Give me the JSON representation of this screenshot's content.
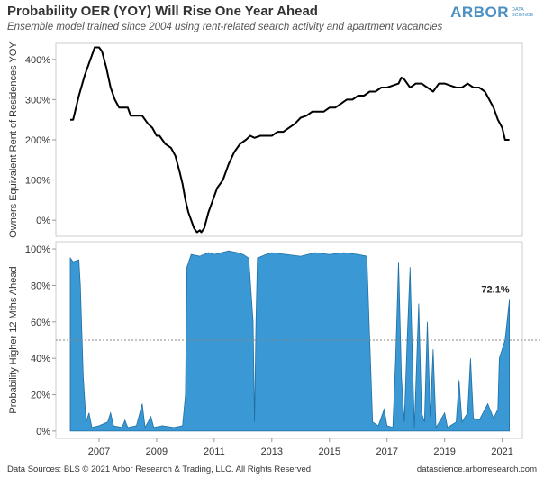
{
  "header": {
    "title": "Probability OER (YOY) Will Rise One Year Ahead",
    "subtitle": "Ensemble model trained since 2004 using rent-related search activity and apartment vacancies"
  },
  "logo": {
    "main": "ARBOR",
    "sub": "DATA SCIENCE"
  },
  "footer": {
    "left": "Data Sources: BLS © 2021 Arbor Research & Trading, LLC. All Rights Reserved",
    "right": "datascience.arborresearch.com"
  },
  "colors": {
    "line": "#000000",
    "area_fill": "#3a98d4",
    "area_stroke": "#1f6fa3",
    "reference_line": "#888888",
    "logo": "#4a90c2"
  },
  "chart_data": [
    {
      "type": "line",
      "ylabel": "Owners Equivalent Rent of Residences YOY",
      "ylim": [
        -0.4,
        4.4
      ],
      "yticks": [
        0,
        1,
        2,
        3,
        4
      ],
      "ytick_labels": [
        "0%",
        "100%",
        "200%",
        "300%",
        "400%"
      ],
      "xlim": [
        2005.5,
        2021.7
      ],
      "grid": false,
      "series": [
        {
          "values": [
            [
              2006.0,
              2.5
            ],
            [
              2006.1,
              2.5
            ],
            [
              2006.3,
              3.1
            ],
            [
              2006.5,
              3.6
            ],
            [
              2006.7,
              4.0
            ],
            [
              2006.85,
              4.3
            ],
            [
              2007.0,
              4.3
            ],
            [
              2007.1,
              4.2
            ],
            [
              2007.25,
              3.8
            ],
            [
              2007.4,
              3.3
            ],
            [
              2007.55,
              3.0
            ],
            [
              2007.7,
              2.8
            ],
            [
              2008.0,
              2.8
            ],
            [
              2008.1,
              2.6
            ],
            [
              2008.5,
              2.6
            ],
            [
              2008.7,
              2.4
            ],
            [
              2008.85,
              2.3
            ],
            [
              2009.0,
              2.1
            ],
            [
              2009.1,
              2.1
            ],
            [
              2009.3,
              1.9
            ],
            [
              2009.5,
              1.8
            ],
            [
              2009.65,
              1.6
            ],
            [
              2009.8,
              1.2
            ],
            [
              2009.9,
              0.9
            ],
            [
              2010.0,
              0.5
            ],
            [
              2010.1,
              0.2
            ],
            [
              2010.2,
              0.0
            ],
            [
              2010.3,
              -0.2
            ],
            [
              2010.4,
              -0.3
            ],
            [
              2010.5,
              -0.25
            ],
            [
              2010.55,
              -0.3
            ],
            [
              2010.65,
              -0.2
            ],
            [
              2010.8,
              0.2
            ],
            [
              2010.95,
              0.5
            ],
            [
              2011.1,
              0.8
            ],
            [
              2011.3,
              1.0
            ],
            [
              2011.5,
              1.4
            ],
            [
              2011.7,
              1.7
            ],
            [
              2011.9,
              1.9
            ],
            [
              2012.1,
              2.0
            ],
            [
              2012.25,
              2.1
            ],
            [
              2012.4,
              2.05
            ],
            [
              2012.6,
              2.1
            ],
            [
              2012.8,
              2.1
            ],
            [
              2013.0,
              2.1
            ],
            [
              2013.2,
              2.2
            ],
            [
              2013.4,
              2.2
            ],
            [
              2013.6,
              2.3
            ],
            [
              2013.8,
              2.4
            ],
            [
              2014.0,
              2.55
            ],
            [
              2014.2,
              2.6
            ],
            [
              2014.4,
              2.7
            ],
            [
              2014.6,
              2.7
            ],
            [
              2014.8,
              2.7
            ],
            [
              2015.0,
              2.8
            ],
            [
              2015.2,
              2.8
            ],
            [
              2015.4,
              2.9
            ],
            [
              2015.6,
              3.0
            ],
            [
              2015.8,
              3.0
            ],
            [
              2016.0,
              3.1
            ],
            [
              2016.2,
              3.1
            ],
            [
              2016.4,
              3.2
            ],
            [
              2016.6,
              3.2
            ],
            [
              2016.8,
              3.3
            ],
            [
              2017.0,
              3.3
            ],
            [
              2017.2,
              3.35
            ],
            [
              2017.4,
              3.4
            ],
            [
              2017.5,
              3.55
            ],
            [
              2017.6,
              3.5
            ],
            [
              2017.8,
              3.3
            ],
            [
              2018.0,
              3.4
            ],
            [
              2018.2,
              3.4
            ],
            [
              2018.4,
              3.3
            ],
            [
              2018.6,
              3.2
            ],
            [
              2018.8,
              3.4
            ],
            [
              2019.0,
              3.4
            ],
            [
              2019.2,
              3.35
            ],
            [
              2019.4,
              3.3
            ],
            [
              2019.6,
              3.3
            ],
            [
              2019.8,
              3.4
            ],
            [
              2020.0,
              3.3
            ],
            [
              2020.2,
              3.3
            ],
            [
              2020.4,
              3.2
            ],
            [
              2020.55,
              3.0
            ],
            [
              2020.7,
              2.8
            ],
            [
              2020.85,
              2.5
            ],
            [
              2021.0,
              2.3
            ],
            [
              2021.1,
              2.0
            ],
            [
              2021.25,
              2.0
            ]
          ]
        }
      ]
    },
    {
      "type": "area",
      "ylabel": "Probability Higher 12 Mths Ahead",
      "ylim": [
        -0.04,
        1.04
      ],
      "yticks": [
        0,
        0.2,
        0.4,
        0.6,
        0.8,
        1.0
      ],
      "ytick_labels": [
        "0%",
        "20%",
        "40%",
        "60%",
        "80%",
        "100%"
      ],
      "xlim": [
        2005.5,
        2021.7
      ],
      "xticks": [
        2007,
        2009,
        2011,
        2013,
        2015,
        2017,
        2019,
        2021
      ],
      "xtick_labels": [
        "2007",
        "2009",
        "2011",
        "2013",
        "2015",
        "2017",
        "2019",
        "2021"
      ],
      "reference_line": 0.5,
      "annotations": [
        {
          "text": "72.1%",
          "x": 2021.25,
          "y": 0.721
        }
      ],
      "grid": false,
      "series": [
        {
          "values": [
            [
              2006.0,
              0.95
            ],
            [
              2006.1,
              0.93
            ],
            [
              2006.3,
              0.94
            ],
            [
              2006.35,
              0.8
            ],
            [
              2006.45,
              0.3
            ],
            [
              2006.55,
              0.05
            ],
            [
              2006.65,
              0.1
            ],
            [
              2006.75,
              0.02
            ],
            [
              2007.0,
              0.03
            ],
            [
              2007.3,
              0.05
            ],
            [
              2007.4,
              0.1
            ],
            [
              2007.5,
              0.03
            ],
            [
              2007.8,
              0.02
            ],
            [
              2007.9,
              0.06
            ],
            [
              2008.0,
              0.02
            ],
            [
              2008.3,
              0.03
            ],
            [
              2008.5,
              0.15
            ],
            [
              2008.6,
              0.02
            ],
            [
              2008.8,
              0.08
            ],
            [
              2008.9,
              0.02
            ],
            [
              2009.2,
              0.03
            ],
            [
              2009.6,
              0.02
            ],
            [
              2009.9,
              0.03
            ],
            [
              2010.0,
              0.2
            ],
            [
              2010.05,
              0.9
            ],
            [
              2010.2,
              0.97
            ],
            [
              2010.5,
              0.96
            ],
            [
              2010.8,
              0.98
            ],
            [
              2011.0,
              0.97
            ],
            [
              2011.5,
              0.99
            ],
            [
              2011.8,
              0.98
            ],
            [
              2012.0,
              0.97
            ],
            [
              2012.2,
              0.95
            ],
            [
              2012.35,
              0.6
            ],
            [
              2012.4,
              0.05
            ],
            [
              2012.45,
              0.6
            ],
            [
              2012.5,
              0.95
            ],
            [
              2012.8,
              0.97
            ],
            [
              2013.0,
              0.98
            ],
            [
              2013.5,
              0.97
            ],
            [
              2014.0,
              0.96
            ],
            [
              2014.5,
              0.98
            ],
            [
              2015.0,
              0.97
            ],
            [
              2015.5,
              0.98
            ],
            [
              2016.0,
              0.97
            ],
            [
              2016.3,
              0.96
            ],
            [
              2016.4,
              0.5
            ],
            [
              2016.5,
              0.05
            ],
            [
              2016.7,
              0.03
            ],
            [
              2016.9,
              0.12
            ],
            [
              2017.0,
              0.03
            ],
            [
              2017.2,
              0.02
            ],
            [
              2017.3,
              0.4
            ],
            [
              2017.4,
              0.93
            ],
            [
              2017.5,
              0.3
            ],
            [
              2017.6,
              0.05
            ],
            [
              2017.7,
              0.5
            ],
            [
              2017.8,
              0.9
            ],
            [
              2017.9,
              0.3
            ],
            [
              2017.95,
              0.02
            ],
            [
              2018.1,
              0.7
            ],
            [
              2018.2,
              0.1
            ],
            [
              2018.3,
              0.05
            ],
            [
              2018.4,
              0.6
            ],
            [
              2018.5,
              0.08
            ],
            [
              2018.6,
              0.45
            ],
            [
              2018.7,
              0.02
            ],
            [
              2019.0,
              0.1
            ],
            [
              2019.1,
              0.02
            ],
            [
              2019.4,
              0.05
            ],
            [
              2019.5,
              0.28
            ],
            [
              2019.6,
              0.05
            ],
            [
              2019.8,
              0.1
            ],
            [
              2019.9,
              0.4
            ],
            [
              2020.0,
              0.07
            ],
            [
              2020.2,
              0.06
            ],
            [
              2020.5,
              0.15
            ],
            [
              2020.7,
              0.07
            ],
            [
              2020.85,
              0.12
            ],
            [
              2020.9,
              0.4
            ],
            [
              2021.0,
              0.45
            ],
            [
              2021.1,
              0.5
            ],
            [
              2021.25,
              0.721
            ]
          ]
        }
      ]
    }
  ]
}
